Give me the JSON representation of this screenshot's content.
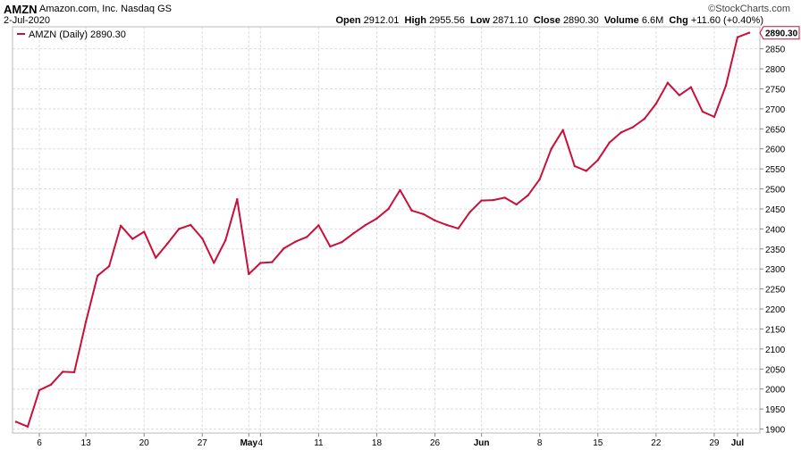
{
  "header": {
    "symbol": "AMZN",
    "company": "Amazon.com, Inc.",
    "exchange": "Nasdaq GS",
    "date": "2-Jul-2020",
    "logo": "©StockCharts.com",
    "open_label": "Open",
    "open": "2912.01",
    "high_label": "High",
    "high": "2955.56",
    "low_label": "Low",
    "low": "2871.10",
    "close_label": "Close",
    "close": "2890.30",
    "volume_label": "Volume",
    "volume": "6.6M",
    "chg_label": "Chg",
    "chg": "+11.60 (+0.40%)",
    "chg_arrow": "▲"
  },
  "legend": {
    "text": "AMZN (Daily) 2890.30"
  },
  "colors": {
    "line": "#c8103c",
    "grid": "#dddddd",
    "axis": "#888888",
    "last_badge_bg": "#ffffff"
  },
  "chart_data": {
    "type": "line",
    "title": "AMZN (Daily) 2890.30",
    "series": [
      {
        "name": "AMZN (Daily) 2890.30",
        "x": [
          "2020-04-02",
          "2020-04-03",
          "2020-04-06",
          "2020-04-07",
          "2020-04-08",
          "2020-04-09",
          "2020-04-13",
          "2020-04-14",
          "2020-04-15",
          "2020-04-16",
          "2020-04-17",
          "2020-04-20",
          "2020-04-21",
          "2020-04-22",
          "2020-04-23",
          "2020-04-24",
          "2020-04-27",
          "2020-04-28",
          "2020-04-29",
          "2020-04-30",
          "2020-05-01",
          "2020-05-04",
          "2020-05-05",
          "2020-05-06",
          "2020-05-07",
          "2020-05-08",
          "2020-05-11",
          "2020-05-12",
          "2020-05-13",
          "2020-05-14",
          "2020-05-15",
          "2020-05-18",
          "2020-05-19",
          "2020-05-20",
          "2020-05-21",
          "2020-05-22",
          "2020-05-26",
          "2020-05-27",
          "2020-05-28",
          "2020-05-29",
          "2020-06-01",
          "2020-06-02",
          "2020-06-03",
          "2020-06-04",
          "2020-06-05",
          "2020-06-08",
          "2020-06-09",
          "2020-06-10",
          "2020-06-11",
          "2020-06-12",
          "2020-06-15",
          "2020-06-16",
          "2020-06-17",
          "2020-06-18",
          "2020-06-19",
          "2020-06-22",
          "2020-06-23",
          "2020-06-24",
          "2020-06-25",
          "2020-06-26",
          "2020-06-29",
          "2020-06-30",
          "2020-07-01",
          "2020-07-02"
        ],
        "values": [
          1918,
          1906,
          1997,
          2011,
          2043,
          2042,
          2168,
          2283,
          2307,
          2408,
          2375,
          2393,
          2328,
          2363,
          2400,
          2410,
          2376,
          2315,
          2372,
          2474,
          2287,
          2315,
          2317,
          2351,
          2368,
          2380,
          2409,
          2356,
          2367,
          2389,
          2409,
          2426,
          2450,
          2497,
          2446,
          2437,
          2421,
          2410,
          2401,
          2442,
          2471,
          2472,
          2478,
          2461,
          2484,
          2524,
          2600,
          2647,
          2557,
          2545,
          2572,
          2616,
          2641,
          2654,
          2675,
          2713,
          2765,
          2734,
          2754,
          2693,
          2680,
          2758,
          2879,
          2890
        ]
      }
    ],
    "x_tick_labels": [
      "6",
      "13",
      "20",
      "27",
      "May",
      "4",
      "11",
      "18",
      "26",
      "Jun",
      "8",
      "15",
      "22",
      "29",
      "Jul"
    ],
    "x_tick_dates": [
      "2020-04-06",
      "2020-04-13",
      "2020-04-20",
      "2020-04-27",
      "2020-05-01",
      "2020-05-04",
      "2020-05-11",
      "2020-05-18",
      "2020-05-26",
      "2020-06-01",
      "2020-06-08",
      "2020-06-15",
      "2020-06-22",
      "2020-06-29",
      "2020-07-01"
    ],
    "y_ticks": [
      1900,
      1950,
      2000,
      2050,
      2100,
      2150,
      2200,
      2250,
      2300,
      2350,
      2400,
      2450,
      2500,
      2550,
      2600,
      2650,
      2700,
      2750,
      2800,
      2850
    ],
    "ylim": [
      1890,
      2905
    ],
    "last_value_label": "2890.30",
    "grid": true,
    "legend_position": "top-left",
    "y_axis_side": "right"
  }
}
